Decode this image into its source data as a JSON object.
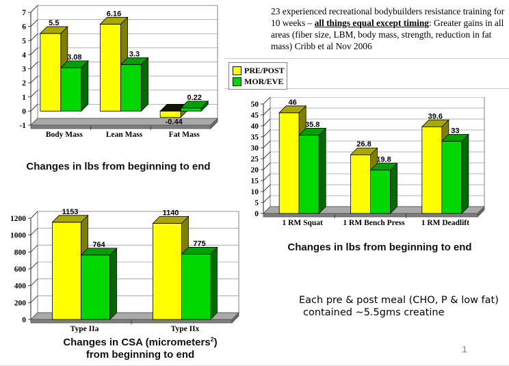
{
  "study_note": {
    "before": "23 experienced recreational bodybuilders resistance training for 10 weeks – ",
    "emphasis": "all things equal except timing",
    "after": ": Greater gains in all areas (fiber size, LBM, body mass, strength, reduction in fat mass) Cribb et al Nov 2006"
  },
  "legend": {
    "items": [
      {
        "label": "PRE/POST",
        "color": "#FFFF00"
      },
      {
        "label": "MOR/EVE",
        "color": "#00D800"
      }
    ]
  },
  "chart_data": [
    {
      "type": "bar",
      "title": "",
      "categories": [
        "Body Mass",
        "Lean Mass",
        "Fat Mass"
      ],
      "series": [
        {
          "name": "PRE/POST",
          "values": [
            5.5,
            6.16,
            -0.44
          ]
        },
        {
          "name": "MOR/EVE",
          "values": [
            3.08,
            3.3,
            0.22
          ]
        }
      ],
      "ylim": [
        -1,
        7
      ],
      "ytick": 1,
      "grid": true,
      "legend_position": "right-of-chart",
      "caption": "Changes in lbs from beginning to end"
    },
    {
      "type": "bar",
      "title": "",
      "categories": [
        "1 RM Squat",
        "1 RM Bench Press",
        "1 RM Deadlift"
      ],
      "series": [
        {
          "name": "PRE/POST",
          "values": [
            46,
            26.8,
            39.6
          ]
        },
        {
          "name": "MOR/EVE",
          "values": [
            35.8,
            19.8,
            33
          ]
        }
      ],
      "ylim": [
        0,
        50
      ],
      "ytick": 5,
      "grid": true,
      "caption": "Changes in lbs from beginning to end"
    },
    {
      "type": "bar",
      "title": "",
      "categories": [
        "Type IIa",
        "Type IIx"
      ],
      "series": [
        {
          "name": "PRE/POST",
          "values": [
            1153,
            1140
          ]
        },
        {
          "name": "MOR/EVE",
          "values": [
            764,
            775
          ]
        }
      ],
      "ylim": [
        0,
        1200
      ],
      "ytick": 200,
      "grid": true,
      "caption_line1_pre": "Changes in CSA (micrometers",
      "caption_sup": "2",
      "caption_line1_post": ")",
      "caption_line2": "from beginning to end"
    }
  ],
  "creatine_note": {
    "line1": "Each pre & post meal (CHO, P & low fat)",
    "line2": "contained ~5.5gms creatine"
  },
  "page_number": "1",
  "colors": {
    "pre_post_front": "#FFFF00",
    "pre_post_top": "#A8A800",
    "pre_post_side": "#7E7E00",
    "pre_post_neg_top": "#141400",
    "mor_eve_front": "#00D800",
    "mor_eve_top": "#00A000",
    "mor_eve_side": "#006B00",
    "floor_top": "#A9A9A9",
    "floor_front": "#7E7E7E",
    "gridline": "#9A9A9A",
    "axis": "#333333"
  }
}
